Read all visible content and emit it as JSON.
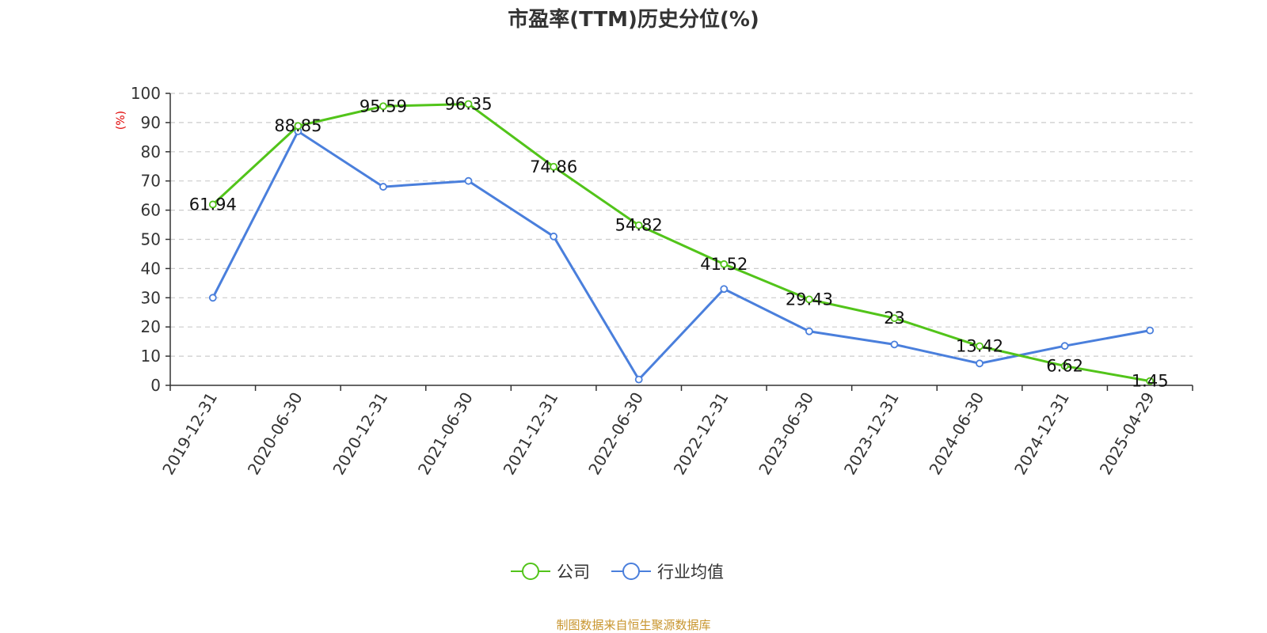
{
  "chart_data": {
    "type": "line",
    "title": "市盈率(TTM)历史分位(%)",
    "ylabel": "(%)",
    "xlabel": "",
    "ylim": [
      0,
      100
    ],
    "yticks": [
      0,
      10,
      20,
      30,
      40,
      50,
      60,
      70,
      80,
      90,
      100
    ],
    "grid": true,
    "legend_position": "bottom-center",
    "categories": [
      "2019-12-31",
      "2020-06-30",
      "2020-12-31",
      "2021-06-30",
      "2021-12-31",
      "2022-06-30",
      "2022-12-31",
      "2023-06-30",
      "2023-12-31",
      "2024-06-30",
      "2024-12-31",
      "2025-04-29"
    ],
    "series": [
      {
        "name": "公司",
        "color": "#52c41a",
        "show_labels": true,
        "labels": [
          "61.94",
          "88.85",
          "95.59",
          "96.35",
          "74.86",
          "54.82",
          "41.52",
          "29.43",
          "23",
          "13.42",
          "6.62",
          "1.45"
        ],
        "values": [
          61.94,
          88.85,
          95.59,
          96.35,
          74.86,
          54.82,
          41.52,
          29.43,
          23,
          13.42,
          6.62,
          1.45
        ]
      },
      {
        "name": "行业均值",
        "color": "#4a7fdc",
        "show_labels": false,
        "values": [
          30,
          87,
          68,
          70,
          51,
          2,
          33,
          18.5,
          14,
          7.5,
          13.5,
          18.8
        ]
      }
    ],
    "source": "制图数据来自恒生聚源数据库"
  }
}
